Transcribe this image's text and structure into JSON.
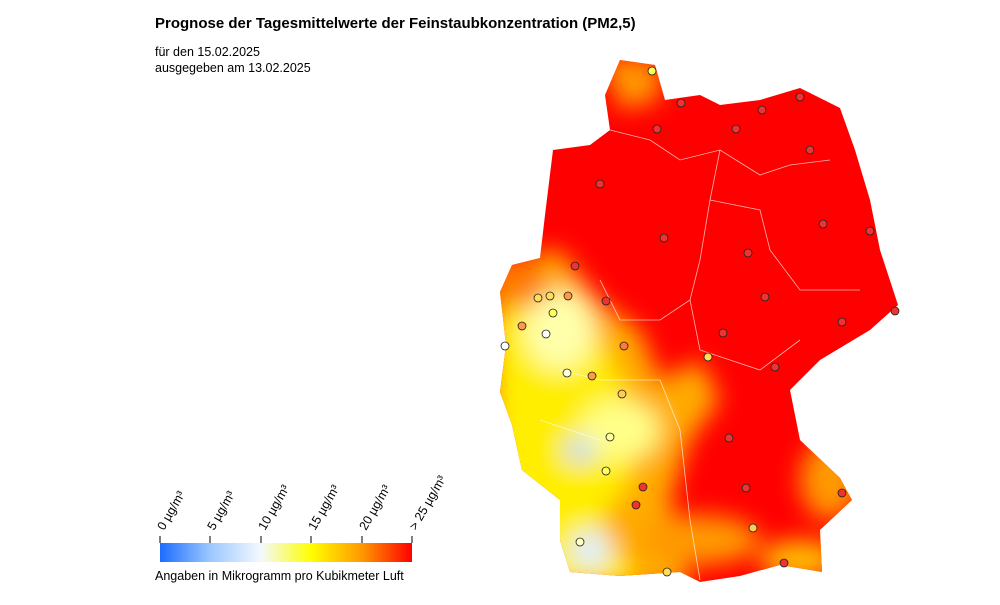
{
  "title": "Prognose der Tagesmittelwerte der Feinstaubkonzentration (PM2,5)",
  "subtitle": [
    "für den 15.02.2025",
    "ausgegeben am 13.02.2025"
  ],
  "legend": {
    "labels": [
      "0 µg/m³",
      "5 µg/m³",
      "10 µg/m³",
      "15 µg/m³",
      "20 µg/m³",
      "> 25 µg/m³"
    ],
    "caption": "Angaben in Mikrogramm pro Kubikmeter Luft"
  }
}
